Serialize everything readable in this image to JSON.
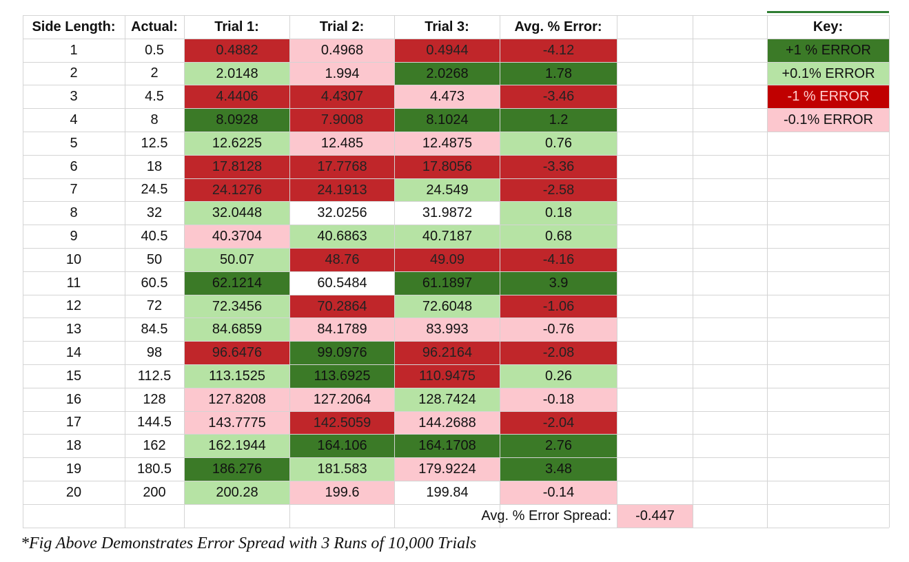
{
  "colors": {
    "dark_green": "#3b7a27",
    "light_green": "#b6e3a4",
    "dark_red": "#c0262a",
    "pink": "#fcc7ce",
    "key_red": "#c00000",
    "white": "#ffffff"
  },
  "headers": [
    "Side Length:",
    "Actual:",
    "Trial 1:",
    "Trial 2:",
    "Trial 3:",
    "Avg. % Error:"
  ],
  "rows": [
    {
      "side": "1",
      "actual": "0.5",
      "t1": "0.4882",
      "t2": "0.4968",
      "t3": "0.4944",
      "avg": "-4.12",
      "c": [
        "dr",
        "pk",
        "dr",
        "dr"
      ]
    },
    {
      "side": "2",
      "actual": "2",
      "t1": "2.0148",
      "t2": "1.994",
      "t3": "2.0268",
      "avg": "1.78",
      "c": [
        "lg",
        "pk",
        "dg",
        "dg"
      ]
    },
    {
      "side": "3",
      "actual": "4.5",
      "t1": "4.4406",
      "t2": "4.4307",
      "t3": "4.473",
      "avg": "-3.46",
      "c": [
        "dr",
        "dr",
        "pk",
        "dr"
      ]
    },
    {
      "side": "4",
      "actual": "8",
      "t1": "8.0928",
      "t2": "7.9008",
      "t3": "8.1024",
      "avg": "1.2",
      "c": [
        "dg",
        "dr",
        "dg",
        "dg"
      ]
    },
    {
      "side": "5",
      "actual": "12.5",
      "t1": "12.6225",
      "t2": "12.485",
      "t3": "12.4875",
      "avg": "0.76",
      "c": [
        "lg",
        "pk",
        "pk",
        "lg"
      ]
    },
    {
      "side": "6",
      "actual": "18",
      "t1": "17.8128",
      "t2": "17.7768",
      "t3": "17.8056",
      "avg": "-3.36",
      "c": [
        "dr",
        "dr",
        "dr",
        "dr"
      ]
    },
    {
      "side": "7",
      "actual": "24.5",
      "t1": "24.1276",
      "t2": "24.1913",
      "t3": "24.549",
      "avg": "-2.58",
      "c": [
        "dr",
        "dr",
        "lg",
        "dr"
      ]
    },
    {
      "side": "8",
      "actual": "32",
      "t1": "32.0448",
      "t2": "32.0256",
      "t3": "31.9872",
      "avg": "0.18",
      "c": [
        "lg",
        "wh",
        "wh",
        "lg"
      ]
    },
    {
      "side": "9",
      "actual": "40.5",
      "t1": "40.3704",
      "t2": "40.6863",
      "t3": "40.7187",
      "avg": "0.68",
      "c": [
        "pk",
        "lg",
        "lg",
        "lg"
      ]
    },
    {
      "side": "10",
      "actual": "50",
      "t1": "50.07",
      "t2": "48.76",
      "t3": "49.09",
      "avg": "-4.16",
      "c": [
        "lg",
        "dr",
        "dr",
        "dr"
      ]
    },
    {
      "side": "11",
      "actual": "60.5",
      "t1": "62.1214",
      "t2": "60.5484",
      "t3": "61.1897",
      "avg": "3.9",
      "c": [
        "dg",
        "wh",
        "dg",
        "dg"
      ]
    },
    {
      "side": "12",
      "actual": "72",
      "t1": "72.3456",
      "t2": "70.2864",
      "t3": "72.6048",
      "avg": "-1.06",
      "c": [
        "lg",
        "dr",
        "lg",
        "dr"
      ]
    },
    {
      "side": "13",
      "actual": "84.5",
      "t1": "84.6859",
      "t2": "84.1789",
      "t3": "83.993",
      "avg": "-0.76",
      "c": [
        "lg",
        "pk",
        "pk",
        "pk"
      ]
    },
    {
      "side": "14",
      "actual": "98",
      "t1": "96.6476",
      "t2": "99.0976",
      "t3": "96.2164",
      "avg": "-2.08",
      "c": [
        "dr",
        "dg",
        "dr",
        "dr"
      ]
    },
    {
      "side": "15",
      "actual": "112.5",
      "t1": "113.1525",
      "t2": "113.6925",
      "t3": "110.9475",
      "avg": "0.26",
      "c": [
        "lg",
        "dg",
        "dr",
        "lg"
      ]
    },
    {
      "side": "16",
      "actual": "128",
      "t1": "127.8208",
      "t2": "127.2064",
      "t3": "128.7424",
      "avg": "-0.18",
      "c": [
        "pk",
        "pk",
        "lg",
        "pk"
      ]
    },
    {
      "side": "17",
      "actual": "144.5",
      "t1": "143.7775",
      "t2": "142.5059",
      "t3": "144.2688",
      "avg": "-2.04",
      "c": [
        "pk",
        "dr",
        "pk",
        "dr"
      ]
    },
    {
      "side": "18",
      "actual": "162",
      "t1": "162.1944",
      "t2": "164.106",
      "t3": "164.1708",
      "avg": "2.76",
      "c": [
        "lg",
        "dg",
        "dg",
        "dg"
      ]
    },
    {
      "side": "19",
      "actual": "180.5",
      "t1": "186.276",
      "t2": "181.583",
      "t3": "179.9224",
      "avg": "3.48",
      "c": [
        "dg",
        "lg",
        "pk",
        "dg"
      ]
    },
    {
      "side": "20",
      "actual": "200",
      "t1": "200.28",
      "t2": "199.6",
      "t3": "199.84",
      "avg": "-0.14",
      "c": [
        "lg",
        "pk",
        "wh",
        "pk"
      ]
    }
  ],
  "spread": {
    "label": "Avg. % Error Spread:",
    "value": "-0.447"
  },
  "key": {
    "title": "Key:",
    "items": [
      {
        "label": "+1 % ERROR",
        "color": "dg"
      },
      {
        "label": "+0.1% ERROR",
        "color": "lg"
      },
      {
        "label": "-1 % ERROR",
        "color": "kr"
      },
      {
        "label": "-0.1% ERROR",
        "color": "pk"
      }
    ]
  },
  "caption": "*Fig Above Demonstrates Error Spread with 3 Runs of 10,000 Trials"
}
